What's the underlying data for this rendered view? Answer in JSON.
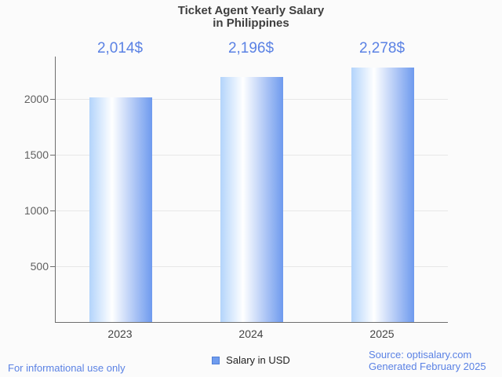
{
  "title": {
    "line1": "Ticket Agent Yearly Salary",
    "line2": "in Philippines"
  },
  "chart_data": {
    "type": "bar",
    "title": "Ticket Agent Yearly Salary in Philippines",
    "categories": [
      "2023",
      "2024",
      "2025"
    ],
    "values": [
      2014,
      2196,
      2278
    ],
    "value_labels": [
      "2,014$",
      "2,196$",
      "2,278$"
    ],
    "series_name": "Salary in USD",
    "unit": "USD",
    "y_ticks": [
      500,
      1000,
      1500,
      2000
    ],
    "y_tick_labels": [
      "500",
      "1000",
      "1500",
      "2000"
    ],
    "ylim": [
      0,
      2380
    ],
    "grid": true,
    "legend_position": "bottom",
    "xlabel": "",
    "ylabel": ""
  },
  "legend": {
    "label": "Salary in USD"
  },
  "footer": {
    "disclaimer": "For informational use only",
    "source_line1": "Source: optisalary.com",
    "source_line2": "Generated February 2025"
  },
  "colors": {
    "page_bg": "#fbfbfb",
    "title_color": "#3f3f3f",
    "accent_text": "#5b82e4",
    "ylabel_color": "#616161",
    "xlabel_color": "#444444",
    "axis_color": "#6e6e6e",
    "grid_color": "#e7e7e7",
    "legend_swatch": "#6f9cee",
    "legend_swatch_border": "#5180d8",
    "bar_gradient_start": "#b3d4fb",
    "bar_gradient_mid": "#ffffff",
    "bar_gradient_end": "#6e9aee"
  }
}
